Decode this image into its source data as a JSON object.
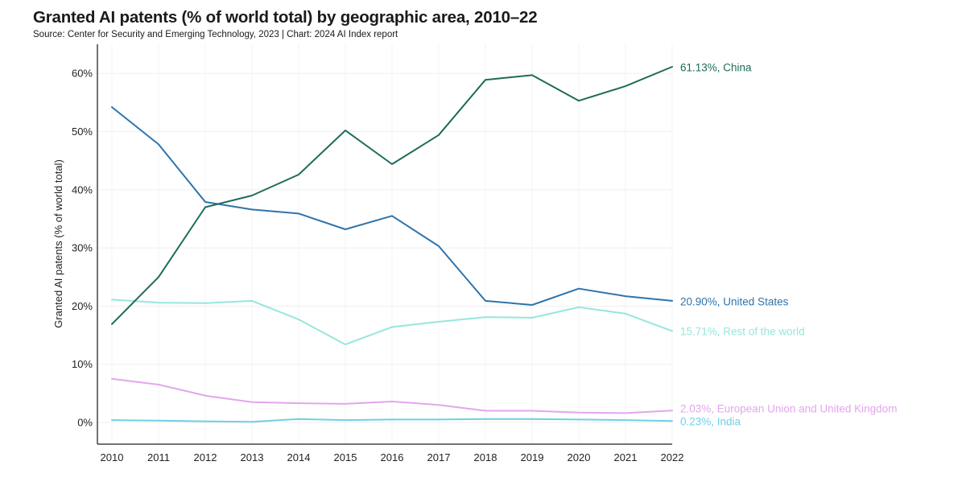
{
  "chart_data": {
    "type": "line",
    "title": "Granted AI patents (% of world total) by geographic area, 2010–22",
    "subtitle": "Source: Center for Security and Emerging Technology, 2023 | Chart: 2024 AI Index report",
    "xlabel": "",
    "ylabel": "Granted AI patents (% of world total)",
    "ylim": [
      -3.8,
      66
    ],
    "yticks": [
      0,
      10,
      20,
      30,
      40,
      50,
      60
    ],
    "ytick_labels": [
      "0%",
      "10%",
      "20%",
      "30%",
      "40%",
      "50%",
      "60%"
    ],
    "grid": true,
    "x": [
      "2010",
      "2011",
      "2012",
      "2013",
      "2014",
      "2015",
      "2016",
      "2017",
      "2018",
      "2019",
      "2020",
      "2021",
      "2022"
    ],
    "series": [
      {
        "name": "China",
        "color": "#1e6b5a",
        "end_label": "61.13%, China",
        "values": [
          16.9,
          25.0,
          37.0,
          39.0,
          42.6,
          50.2,
          44.4,
          49.4,
          58.9,
          59.7,
          55.3,
          57.8,
          61.13
        ]
      },
      {
        "name": "United States",
        "color": "#2f73ab",
        "end_label": "20.90%, United States",
        "values": [
          54.2,
          47.8,
          37.9,
          36.6,
          35.9,
          33.2,
          35.5,
          30.3,
          20.9,
          20.2,
          23.0,
          21.7,
          20.9
        ]
      },
      {
        "name": "Rest of the world",
        "color": "#96e6dc",
        "end_label": "15.71%, Rest of the world",
        "values": [
          21.1,
          20.6,
          20.5,
          20.9,
          17.7,
          13.4,
          16.4,
          17.3,
          18.1,
          18.0,
          19.8,
          18.7,
          15.71
        ]
      },
      {
        "name": "European Union and United Kingdom",
        "color": "#e3a6ee",
        "end_label": "2.03%, European Union and United Kingdom",
        "values": [
          7.5,
          6.5,
          4.6,
          3.5,
          3.3,
          3.2,
          3.6,
          3.0,
          2.0,
          2.0,
          1.7,
          1.6,
          2.03
        ]
      },
      {
        "name": "India",
        "color": "#6fcfe6",
        "end_label": "0.23%, India",
        "values": [
          0.4,
          0.3,
          0.2,
          0.1,
          0.6,
          0.4,
          0.5,
          0.5,
          0.6,
          0.6,
          0.5,
          0.4,
          0.23
        ]
      }
    ]
  }
}
